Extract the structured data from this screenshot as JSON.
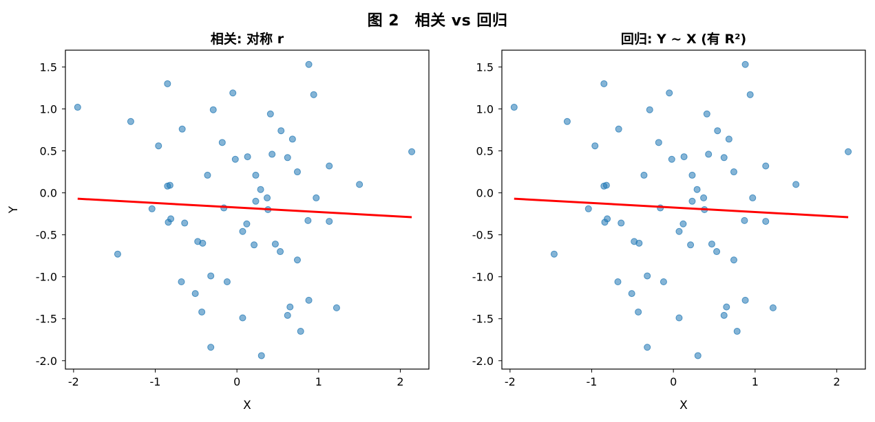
{
  "figure_title": "图 2　相关 vs 回归",
  "chart_data": [
    {
      "type": "scatter",
      "title": "相关: 对称 r",
      "xlabel": "X",
      "ylabel": "Y",
      "xlim": [
        -2.1,
        2.35
      ],
      "ylim": [
        -2.1,
        1.7
      ],
      "xticks": [
        -2,
        -1,
        0,
        1,
        2
      ],
      "yticks": [
        -2.0,
        -1.5,
        -1.0,
        -0.5,
        0.0,
        0.5,
        1.0,
        1.5
      ],
      "xtick_labels": [
        "-2",
        "-1",
        "0",
        "1",
        "2"
      ],
      "ytick_labels": [
        "-2.0",
        "-1.5",
        "-1.0",
        "-0.5",
        "0.0",
        "0.5",
        "1.0",
        "1.5"
      ],
      "point_color": "#1f77b4",
      "line_color": "#ff0000",
      "grid": false,
      "series": [
        {
          "kind": "points",
          "x": [
            -1.95,
            -1.3,
            -0.96,
            -0.85,
            -0.67,
            -0.29,
            -0.05,
            -0.18,
            0.13,
            0.41,
            0.54,
            0.68,
            0.88,
            0.94,
            1.13,
            1.5,
            2.14,
            0.62,
            0.74,
            0.43,
            -0.02,
            0.23,
            0.29,
            -0.36,
            -0.82,
            -0.85,
            -1.04,
            -0.84,
            -0.81,
            -0.64,
            -0.48,
            -0.42,
            -0.16,
            0.07,
            0.12,
            0.21,
            0.23,
            0.37,
            0.38,
            0.47,
            0.53,
            0.74,
            0.87,
            0.97,
            1.13,
            -1.46,
            -0.68,
            -0.51,
            -0.43,
            -0.32,
            -0.12,
            0.07,
            0.3,
            0.62,
            0.65,
            0.78,
            0.88,
            1.22,
            -0.32
          ],
          "y": [
            1.02,
            0.85,
            0.56,
            1.3,
            0.76,
            0.99,
            1.19,
            0.6,
            0.43,
            0.94,
            0.74,
            0.64,
            1.53,
            1.17,
            0.32,
            0.1,
            0.49,
            0.42,
            0.25,
            0.46,
            0.4,
            0.21,
            0.04,
            0.21,
            0.09,
            0.08,
            -0.19,
            -0.35,
            -0.31,
            -0.36,
            -0.58,
            -0.6,
            -0.18,
            -0.46,
            -0.37,
            -0.62,
            -0.1,
            -0.06,
            -0.2,
            -0.61,
            -0.7,
            -0.8,
            -0.33,
            -0.06,
            -0.34,
            -0.73,
            -1.06,
            -1.2,
            -1.42,
            -0.99,
            -1.06,
            -1.49,
            -1.94,
            -1.46,
            -1.36,
            -1.65,
            -1.28,
            -1.37,
            -1.84
          ]
        },
        {
          "kind": "line",
          "x": [
            -1.95,
            2.14
          ],
          "y": [
            -0.07,
            -0.29
          ]
        }
      ]
    },
    {
      "type": "scatter",
      "title": "回归: Y ~ X (有 R²)",
      "xlabel": "X",
      "ylabel": "",
      "xlim": [
        -2.1,
        2.35
      ],
      "ylim": [
        -2.1,
        1.7
      ],
      "xticks": [
        -2,
        -1,
        0,
        1,
        2
      ],
      "yticks": [
        -2.0,
        -1.5,
        -1.0,
        -0.5,
        0.0,
        0.5,
        1.0,
        1.5
      ],
      "xtick_labels": [
        "-2",
        "-1",
        "0",
        "1",
        "2"
      ],
      "ytick_labels": [
        "-2.0",
        "-1.5",
        "-1.0",
        "-0.5",
        "0.0",
        "0.5",
        "1.0",
        "1.5"
      ],
      "point_color": "#1f77b4",
      "line_color": "#ff0000",
      "grid": false,
      "series": [
        {
          "kind": "points",
          "x": [
            -1.95,
            -1.3,
            -0.96,
            -0.85,
            -0.67,
            -0.29,
            -0.05,
            -0.18,
            0.13,
            0.41,
            0.54,
            0.68,
            0.88,
            0.94,
            1.13,
            1.5,
            2.14,
            0.62,
            0.74,
            0.43,
            -0.02,
            0.23,
            0.29,
            -0.36,
            -0.82,
            -0.85,
            -1.04,
            -0.84,
            -0.81,
            -0.64,
            -0.48,
            -0.42,
            -0.16,
            0.07,
            0.12,
            0.21,
            0.23,
            0.37,
            0.38,
            0.47,
            0.53,
            0.74,
            0.87,
            0.97,
            1.13,
            -1.46,
            -0.68,
            -0.51,
            -0.43,
            -0.32,
            -0.12,
            0.07,
            0.3,
            0.62,
            0.65,
            0.78,
            0.88,
            1.22,
            -0.32
          ],
          "y": [
            1.02,
            0.85,
            0.56,
            1.3,
            0.76,
            0.99,
            1.19,
            0.6,
            0.43,
            0.94,
            0.74,
            0.64,
            1.53,
            1.17,
            0.32,
            0.1,
            0.49,
            0.42,
            0.25,
            0.46,
            0.4,
            0.21,
            0.04,
            0.21,
            0.09,
            0.08,
            -0.19,
            -0.35,
            -0.31,
            -0.36,
            -0.58,
            -0.6,
            -0.18,
            -0.46,
            -0.37,
            -0.62,
            -0.1,
            -0.06,
            -0.2,
            -0.61,
            -0.7,
            -0.8,
            -0.33,
            -0.06,
            -0.34,
            -0.73,
            -1.06,
            -1.2,
            -1.42,
            -0.99,
            -1.06,
            -1.49,
            -1.94,
            -1.46,
            -1.36,
            -1.65,
            -1.28,
            -1.37,
            -1.84
          ]
        },
        {
          "kind": "line",
          "x": [
            -1.95,
            2.14
          ],
          "y": [
            -0.07,
            -0.29
          ]
        }
      ]
    }
  ]
}
